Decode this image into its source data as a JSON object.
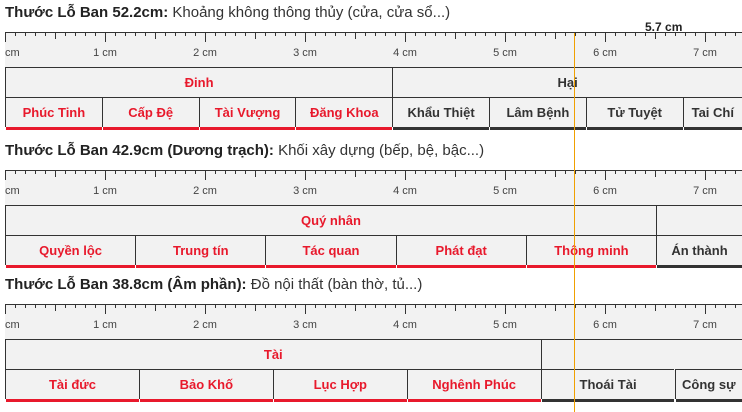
{
  "marker": {
    "label": "5.7 cm",
    "value_cm": 5.7,
    "color": "#f0a000"
  },
  "colors": {
    "good": "#e8192c",
    "bad": "#333333"
  },
  "ruler_unit": "cm",
  "sections": [
    {
      "title_bold": "Thước Lỗ Ban 52.2cm:",
      "title_rest": " Khoảng không thông thủy (cửa, cửa sổ...)",
      "groups": [
        {
          "label": "Đinh",
          "good": true,
          "cells": [
            "Phúc Tinh",
            "Cấp Đệ",
            "Tài Vượng",
            "Đăng Khoa"
          ]
        },
        {
          "label": "Hại",
          "good": false,
          "cells": [
            "Khẩu Thiệt",
            "Lâm Bệnh",
            "Tử Tuyệt",
            "Tai Chí"
          ]
        }
      ]
    },
    {
      "title_bold": "Thước Lỗ Ban 42.9cm (Dương trạch):",
      "title_rest": " Khối xây dựng (bếp, bệ, bậc...)",
      "groups": [
        {
          "label": "Quý nhân",
          "good": true,
          "cells": [
            "Quyền lộc",
            "Trung tín",
            "Tác quan",
            "Phát đạt",
            "Thông minh"
          ]
        },
        {
          "label": "",
          "good": false,
          "cells": [
            "Án thành"
          ]
        }
      ]
    },
    {
      "title_bold": "Thước Lỗ Ban 38.8cm (Âm phần):",
      "title_rest": " Đồ nội thất (bàn thờ, tủ...)",
      "groups": [
        {
          "label": "Tài",
          "good": true,
          "cells": [
            "Tài đức",
            "Bảo Khố",
            "Lục Hợp",
            "Nghênh Phúc"
          ]
        },
        {
          "label": "",
          "good": false,
          "cells": [
            "Thoái Tài",
            "Công sự"
          ]
        }
      ]
    }
  ]
}
